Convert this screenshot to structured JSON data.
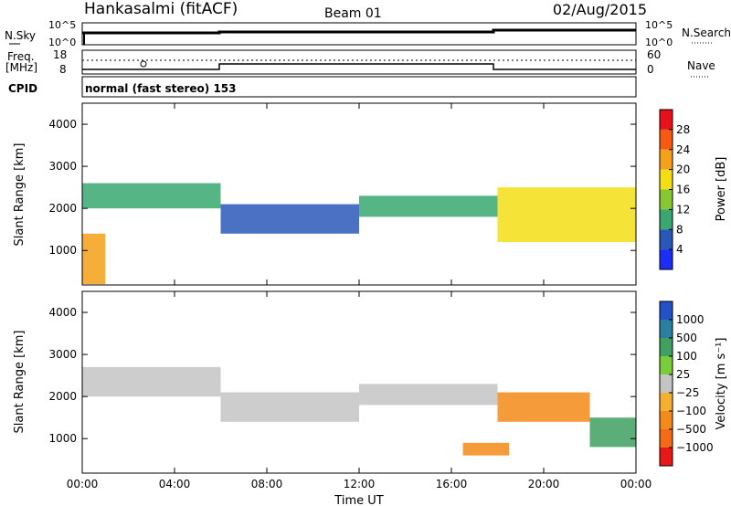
{
  "header": {
    "station": "Hankasalmi (fitACF)",
    "beam": "Beam 01",
    "date": "02/Aug/2015"
  },
  "top_panels": {
    "nsky_label": "N.Sky",
    "nsky_ticks": [
      "10^5",
      "10^0"
    ],
    "nsearch_label": "N.Search",
    "nsearch_ticks": [
      "10^5",
      "10^0"
    ],
    "freq_label_1": "Freq.",
    "freq_label_2": "[MHz]",
    "freq_ticks": [
      "18",
      "8"
    ],
    "nave_label": "Nave",
    "nave_ticks": [
      "60",
      "0"
    ],
    "cpid_label": "CPID",
    "cpid_text": "normal (fast stereo) 153"
  },
  "power_colorbar": {
    "title": "Power [dB]",
    "ticks": [
      "28",
      "24",
      "20",
      "16",
      "12",
      "8",
      "4"
    ],
    "colors": [
      "#e8101a",
      "#f55a10",
      "#f5a018",
      "#f3df14",
      "#86c832",
      "#38a870",
      "#2a58b8",
      "#1a2ef5"
    ]
  },
  "velocity_colorbar": {
    "title": "Velocity [m s⁻¹]",
    "ticks": [
      "1000",
      "500",
      "100",
      "25",
      "−25",
      "−100",
      "−500",
      "−1000"
    ],
    "colors": [
      "#2450c8",
      "#2a80a0",
      "#40a060",
      "#7acc3a",
      "#c4c4c4",
      "#f5b030",
      "#f58a18",
      "#f56a14",
      "#e81818"
    ]
  },
  "chart_data": [
    {
      "type": "heatmap",
      "title": "Power",
      "xlabel": "",
      "ylabel": "Slant Range [km]",
      "xlim": [
        "00:00",
        "24:00"
      ],
      "ylim": [
        180,
        4500
      ],
      "yticks": [
        "4000",
        "3000",
        "2000",
        "1000"
      ],
      "xticks": [
        "00:00",
        "04:00",
        "08:00",
        "12:00",
        "16:00",
        "20:00",
        "00:00"
      ],
      "colorbar_label": "Power [dB]",
      "colorbar_range": [
        0,
        30
      ],
      "echo_bands": [
        {
          "t_start": 0.0,
          "t_end": 6.0,
          "range_start": 2000,
          "range_end": 2600,
          "value": 10
        },
        {
          "t_start": 6.0,
          "t_end": 12.0,
          "range_start": 1400,
          "range_end": 2100,
          "value": 7
        },
        {
          "t_start": 12.0,
          "t_end": 18.0,
          "range_start": 1800,
          "range_end": 2300,
          "value": 8
        },
        {
          "t_start": 18.0,
          "t_end": 24.0,
          "range_start": 1200,
          "range_end": 2500,
          "value": 18
        },
        {
          "t_start": 0.0,
          "t_end": 1.0,
          "range_start": 200,
          "range_end": 1400,
          "value": 22
        }
      ]
    },
    {
      "type": "heatmap",
      "title": "Velocity",
      "xlabel": "Time UT",
      "ylabel": "Slant Range [km]",
      "xlim": [
        "00:00",
        "24:00"
      ],
      "ylim": [
        180,
        4500
      ],
      "yticks": [
        "4000",
        "3000",
        "2000",
        "1000"
      ],
      "xticks": [
        "00:00",
        "04:00",
        "08:00",
        "12:00",
        "16:00",
        "20:00",
        "00:00"
      ],
      "colorbar_label": "Velocity [m s⁻¹]",
      "colorbar_range": [
        -1000,
        1000
      ],
      "echo_bands": [
        {
          "t_start": 0.0,
          "t_end": 6.0,
          "range_start": 2000,
          "range_end": 2700,
          "value": 0
        },
        {
          "t_start": 6.0,
          "t_end": 12.0,
          "range_start": 1400,
          "range_end": 2100,
          "value": 0
        },
        {
          "t_start": 12.0,
          "t_end": 18.0,
          "range_start": 1800,
          "range_end": 2300,
          "value": 0
        },
        {
          "t_start": 18.0,
          "t_end": 22.0,
          "range_start": 1400,
          "range_end": 2100,
          "value": -150
        },
        {
          "t_start": 22.0,
          "t_end": 24.0,
          "range_start": 800,
          "range_end": 1500,
          "value": 150
        },
        {
          "t_start": 16.5,
          "t_end": 18.5,
          "range_start": 600,
          "range_end": 900,
          "value": -400
        }
      ]
    }
  ]
}
